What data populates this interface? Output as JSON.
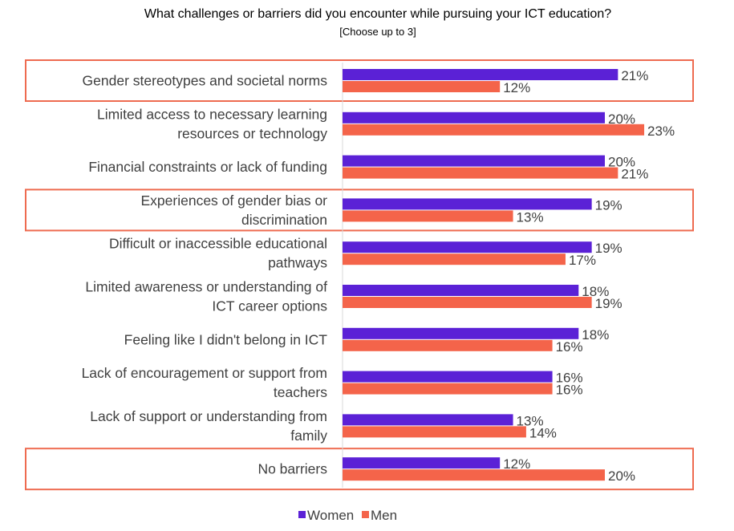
{
  "chart_data": {
    "type": "bar",
    "orientation": "horizontal",
    "title": "What challenges or barriers did you encounter while pursuing your ICT education?",
    "subtitle": "[Choose up to 3]",
    "categories": [
      [
        "Gender stereotypes and societal norms"
      ],
      [
        "Limited access to necessary learning",
        "resources or technology"
      ],
      [
        "Financial constraints or lack of funding"
      ],
      [
        "Experiences of gender bias or",
        "discrimination"
      ],
      [
        "Difficult or inaccessible educational",
        "pathways"
      ],
      [
        "Limited awareness or understanding of",
        "ICT career options"
      ],
      [
        "Feeling like I didn't belong in ICT"
      ],
      [
        "Lack of encouragement or support from",
        "teachers"
      ],
      [
        "Lack of support or understanding from",
        "family"
      ],
      [
        "No barriers"
      ]
    ],
    "series": [
      {
        "name": "Women",
        "color": "#5B21D6",
        "values": [
          21,
          20,
          20,
          19,
          19,
          18,
          18,
          16,
          13,
          12
        ]
      },
      {
        "name": "Men",
        "color": "#F4644A",
        "values": [
          12,
          23,
          21,
          13,
          17,
          19,
          16,
          16,
          14,
          20
        ]
      }
    ],
    "value_suffix": "%",
    "highlighted_categories": [
      0,
      3,
      9
    ],
    "highlight_color": "#EE6B50",
    "legend_position": "bottom",
    "grid": false
  }
}
